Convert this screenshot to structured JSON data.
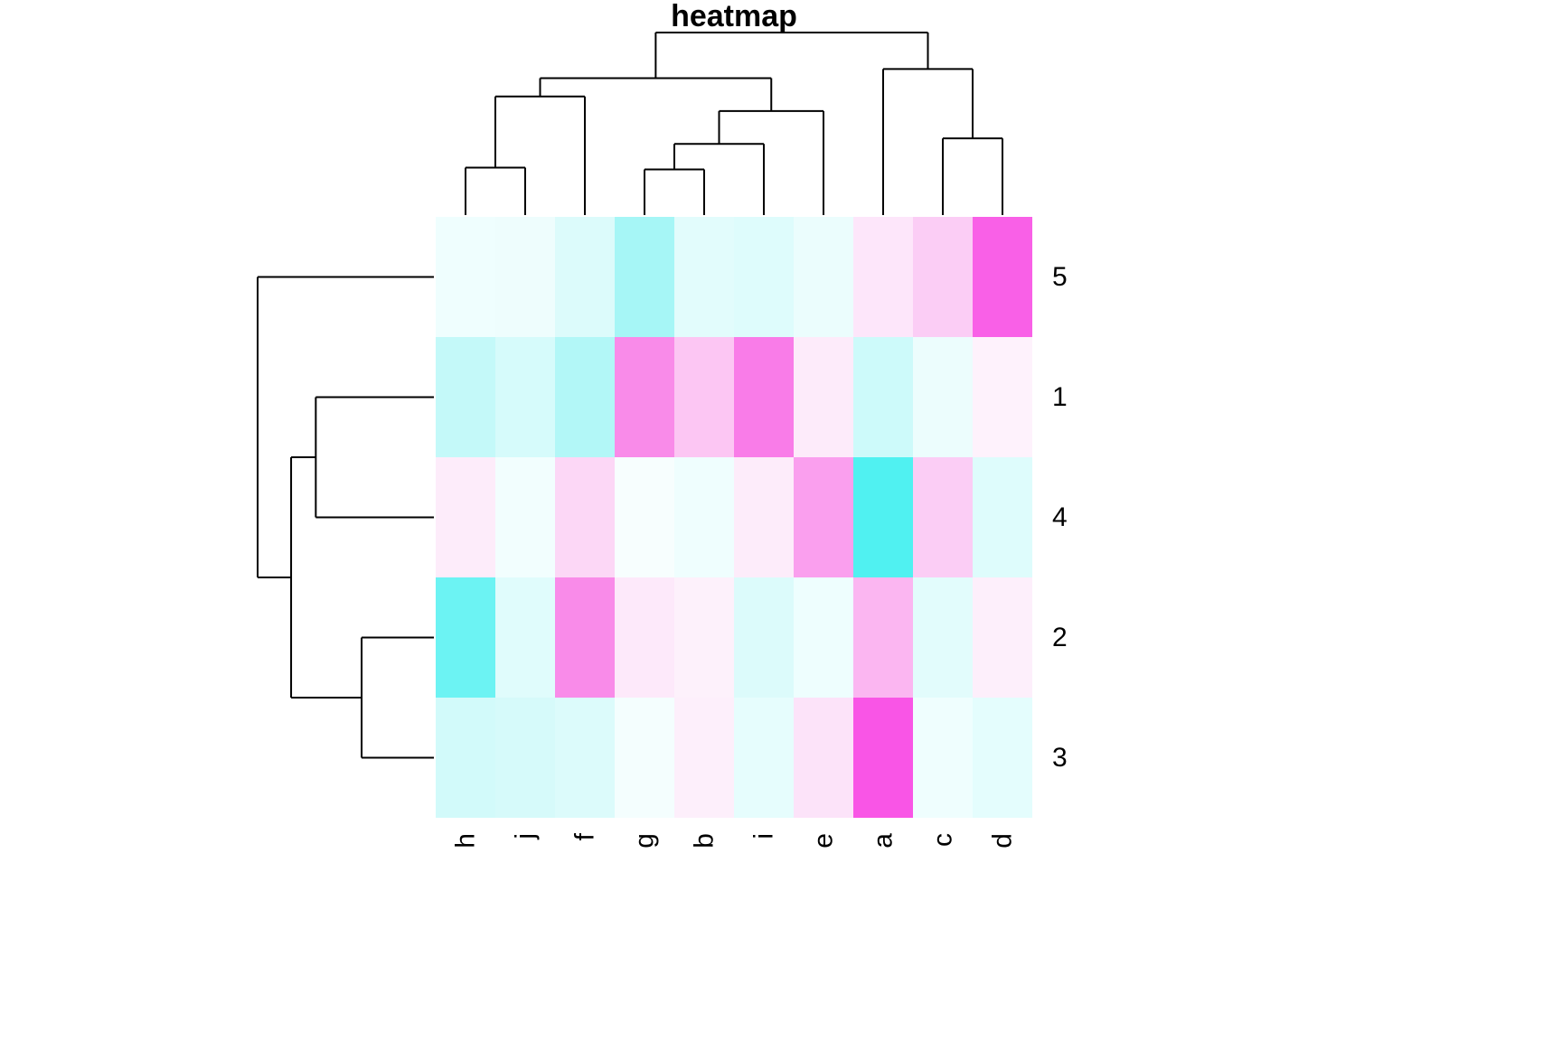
{
  "chart_data": {
    "type": "heatmap",
    "title": "heatmap",
    "columns": [
      "h",
      "j",
      "f",
      "g",
      "b",
      "i",
      "e",
      "a",
      "c",
      "d"
    ],
    "rows": [
      "5",
      "1",
      "4",
      "2",
      "3"
    ],
    "colorscale": {
      "low_color": "#00ffff",
      "mid_color": "#ffffff",
      "high_color": "#ff00ff",
      "note": "cyan-to-magenta diverging scale"
    },
    "cell_colors": [
      [
        "#effefe",
        "#eefdfd",
        "#dcfbfb",
        "#a6f6f6",
        "#e2fcfc",
        "#defcfc",
        "#ebfdfd",
        "#fde6fa",
        "#fbcdf5",
        "#f960e7"
      ],
      [
        "#c4f9f9",
        "#d6fbfb",
        "#b2f7f7",
        "#f98be9",
        "#fcc6f3",
        "#f97ce8",
        "#fdebfa",
        "#cdfafa",
        "#ecfdfd",
        "#fef2fc"
      ],
      [
        "#fdecfa",
        "#f2fefe",
        "#fcd7f6",
        "#f7fefe",
        "#effefe",
        "#fdecfa",
        "#fa9fee",
        "#50f1f1",
        "#fbcdf5",
        "#defcfc"
      ],
      [
        "#6cf3f3",
        "#e0fcfc",
        "#f98be9",
        "#fde9fa",
        "#fdf1fb",
        "#dcfbfb",
        "#eefefe",
        "#fbb6f1",
        "#e2fcfc",
        "#fdeffb"
      ],
      [
        "#d2fafa",
        "#d6fafa",
        "#dcfbfb",
        "#f4fefe",
        "#fdeffb",
        "#e6fdfd",
        "#fce3f9",
        "#f955e6",
        "#effefe",
        "#e4fdfd"
      ]
    ],
    "column_dendrogram": {
      "height": 1.0,
      "children": [
        {
          "height": 0.75,
          "children": [
            {
              "height": 0.65,
              "children": [
                {
                  "height": 0.26,
                  "children": [
                    {
                      "leaf": 0
                    },
                    {
                      "leaf": 1
                    }
                  ]
                },
                {
                  "leaf": 2
                }
              ]
            },
            {
              "height": 0.57,
              "children": [
                {
                  "height": 0.39,
                  "children": [
                    {
                      "height": 0.25,
                      "children": [
                        {
                          "leaf": 3
                        },
                        {
                          "leaf": 4
                        }
                      ]
                    },
                    {
                      "leaf": 5
                    }
                  ]
                },
                {
                  "leaf": 6
                }
              ]
            }
          ]
        },
        {
          "height": 0.8,
          "children": [
            {
              "leaf": 7
            },
            {
              "height": 0.42,
              "children": [
                {
                  "leaf": 8
                },
                {
                  "leaf": 9
                }
              ]
            }
          ]
        }
      ]
    },
    "row_dendrogram": {
      "height": 1.0,
      "children": [
        {
          "leaf": 0
        },
        {
          "height": 0.81,
          "children": [
            {
              "height": 0.67,
              "children": [
                {
                  "leaf": 1
                },
                {
                  "leaf": 2
                }
              ]
            },
            {
              "height": 0.41,
              "children": [
                {
                  "leaf": 3
                },
                {
                  "leaf": 4
                }
              ]
            }
          ]
        }
      ]
    },
    "legend_position": "none",
    "grid": false
  }
}
